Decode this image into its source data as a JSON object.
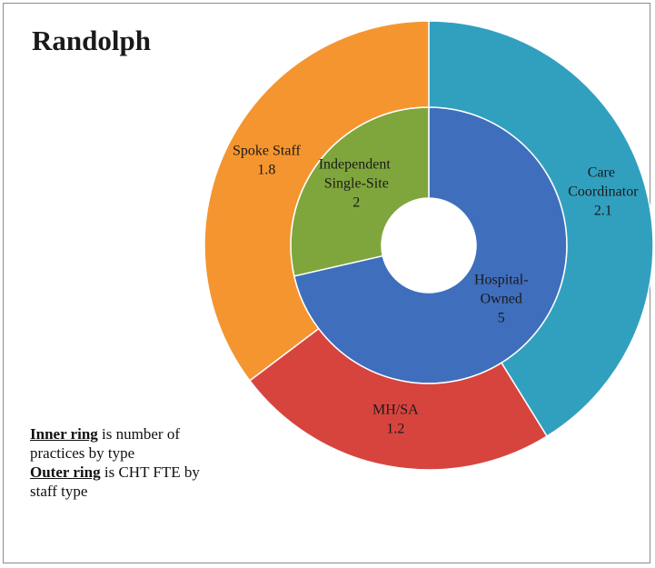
{
  "chart_data": {
    "type": "donut",
    "title": "Randolph",
    "rings": [
      {
        "categories": [
          "Hospital-Owned",
          "Independent Single-Site"
        ],
        "values": [
          5,
          2
        ],
        "colors": [
          "#3f6ebd",
          "#7fa63c"
        ]
      },
      {
        "categories": [
          "Care Coordinator",
          "MH/SA",
          "Spoke Staff"
        ],
        "values": [
          2.1,
          1.2,
          1.8
        ],
        "colors": [
          "#31a0bf",
          "#d7443e",
          "#f5952f"
        ]
      }
    ],
    "notes": [
      {
        "bold": "Inner ring",
        "text": "is number of practices by type"
      },
      {
        "bold": "Outer ring",
        "text": "is CHT FTE by staff type"
      }
    ]
  }
}
